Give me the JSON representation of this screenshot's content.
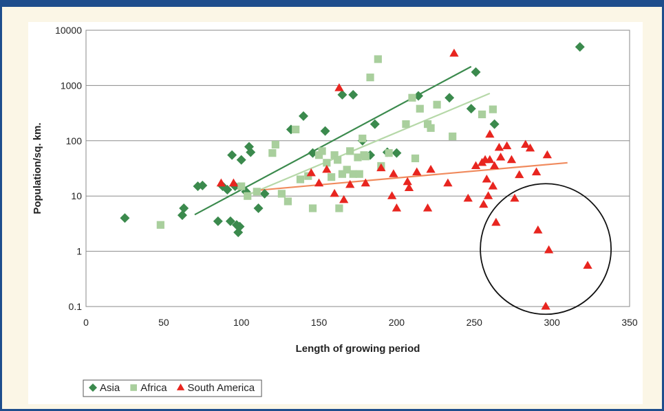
{
  "chart_data": {
    "type": "scatter",
    "title": "",
    "xlabel": "Length of growing period",
    "ylabel": "Population/sq. km.",
    "xlim": [
      0,
      350
    ],
    "ylim": [
      0.1,
      10000
    ],
    "y_scale": "log",
    "x_ticks": [
      "0",
      "50",
      "100",
      "150",
      "200",
      "250",
      "300",
      "350"
    ],
    "y_ticks": [
      "0.1",
      "1",
      "10",
      "100",
      "1000",
      "10000"
    ],
    "grid": "horizontal",
    "legend_position": "bottom-left",
    "series": [
      {
        "name": "Asia",
        "marker": "diamond",
        "color": "#3b8a4d",
        "points": [
          [
            25,
            4
          ],
          [
            62,
            4.5
          ],
          [
            63,
            6
          ],
          [
            72,
            15
          ],
          [
            75,
            15.5
          ],
          [
            85,
            3.5
          ],
          [
            88,
            15
          ],
          [
            91,
            13
          ],
          [
            93,
            3.5
          ],
          [
            94,
            55
          ],
          [
            96,
            15
          ],
          [
            97,
            3
          ],
          [
            98,
            2.2
          ],
          [
            99,
            2.8
          ],
          [
            100,
            45
          ],
          [
            103,
            12
          ],
          [
            105,
            78
          ],
          [
            106,
            62
          ],
          [
            111,
            6
          ],
          [
            115,
            11
          ],
          [
            132,
            160
          ],
          [
            140,
            280
          ],
          [
            146,
            60
          ],
          [
            154,
            150
          ],
          [
            165,
            680
          ],
          [
            172,
            680
          ],
          [
            178,
            100
          ],
          [
            183,
            55
          ],
          [
            186,
            200
          ],
          [
            194,
            62
          ],
          [
            200,
            60
          ],
          [
            214,
            650
          ],
          [
            234,
            600
          ],
          [
            248,
            380
          ],
          [
            251,
            1750
          ],
          [
            263,
            200
          ],
          [
            318,
            5000
          ]
        ],
        "trendline": [
          [
            70,
            4.6
          ],
          [
            248,
            2200
          ]
        ]
      },
      {
        "name": "Africa",
        "marker": "square",
        "color": "#a9cf9d",
        "points": [
          [
            48,
            3
          ],
          [
            100,
            15
          ],
          [
            104,
            10
          ],
          [
            110,
            12
          ],
          [
            120,
            60
          ],
          [
            122,
            85
          ],
          [
            126,
            11
          ],
          [
            130,
            8
          ],
          [
            135,
            160
          ],
          [
            138,
            20
          ],
          [
            143,
            23
          ],
          [
            146,
            6
          ],
          [
            150,
            55
          ],
          [
            152,
            65
          ],
          [
            155,
            40
          ],
          [
            158,
            22
          ],
          [
            160,
            55
          ],
          [
            162,
            45
          ],
          [
            163,
            6
          ],
          [
            165,
            25
          ],
          [
            168,
            30
          ],
          [
            170,
            65
          ],
          [
            172,
            25
          ],
          [
            175,
            50
          ],
          [
            176,
            25
          ],
          [
            178,
            110
          ],
          [
            179,
            55
          ],
          [
            180,
            52
          ],
          [
            183,
            1400
          ],
          [
            188,
            3000
          ],
          [
            190,
            35
          ],
          [
            195,
            60
          ],
          [
            206,
            200
          ],
          [
            210,
            600
          ],
          [
            212,
            48
          ],
          [
            215,
            380
          ],
          [
            220,
            200
          ],
          [
            222,
            170
          ],
          [
            226,
            450
          ],
          [
            236,
            120
          ],
          [
            255,
            300
          ],
          [
            262,
            370
          ]
        ],
        "trendline": [
          [
            106,
            11
          ],
          [
            260,
            720
          ]
        ]
      },
      {
        "name": "South America",
        "marker": "triangle",
        "color": "#e8251f",
        "points": [
          [
            87,
            17
          ],
          [
            95,
            17
          ],
          [
            145,
            26
          ],
          [
            150,
            17
          ],
          [
            155,
            30
          ],
          [
            160,
            11
          ],
          [
            163,
            900
          ],
          [
            166,
            8.5
          ],
          [
            170,
            16
          ],
          [
            180,
            17
          ],
          [
            190,
            32
          ],
          [
            197,
            10
          ],
          [
            198,
            25
          ],
          [
            200,
            6
          ],
          [
            207,
            18
          ],
          [
            208,
            14
          ],
          [
            213,
            27
          ],
          [
            220,
            6
          ],
          [
            222,
            30
          ],
          [
            233,
            17
          ],
          [
            237,
            3800
          ],
          [
            246,
            9
          ],
          [
            251,
            35
          ],
          [
            255,
            40
          ],
          [
            256,
            7
          ],
          [
            257,
            45
          ],
          [
            258,
            20
          ],
          [
            259,
            10
          ],
          [
            260,
            45
          ],
          [
            260,
            130
          ],
          [
            262,
            15
          ],
          [
            263,
            35
          ],
          [
            264,
            3.3
          ],
          [
            266,
            75
          ],
          [
            267,
            50
          ],
          [
            271,
            80
          ],
          [
            274,
            45
          ],
          [
            276,
            9
          ],
          [
            279,
            24
          ],
          [
            283,
            85
          ],
          [
            286,
            73
          ],
          [
            290,
            27
          ],
          [
            291,
            2.4
          ],
          [
            296,
            0.1
          ],
          [
            297,
            55
          ],
          [
            298,
            1.05
          ],
          [
            323,
            0.55
          ]
        ],
        "trendline": [
          [
            108,
            12.5
          ],
          [
            310,
            40
          ]
        ]
      }
    ],
    "annotation": {
      "shape": "circle",
      "center": [
        296,
        1.1
      ]
    }
  }
}
